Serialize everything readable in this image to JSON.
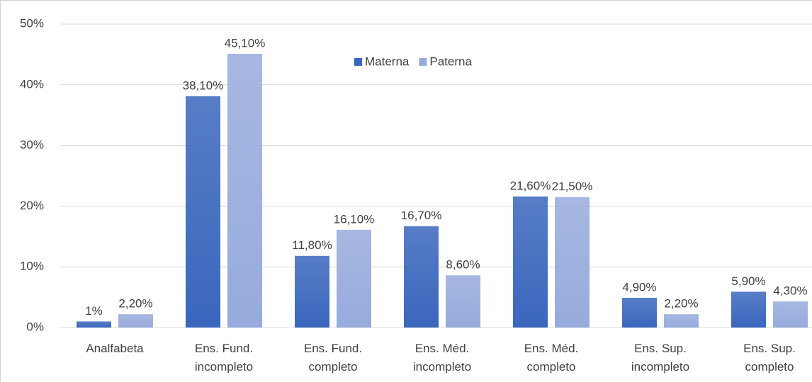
{
  "chart_data": {
    "type": "bar",
    "categories": [
      "Analfabeta",
      "Ens. Fund. incompleto",
      "Ens. Fund. completo",
      "Ens. Méd. incompleto",
      "Ens. Méd. completo",
      "Ens. Sup. incompleto",
      "Ens. Sup. completo"
    ],
    "series": [
      {
        "name": "Materna",
        "color": "#3a66bd",
        "values": [
          1,
          38.1,
          11.8,
          16.7,
          21.6,
          4.9,
          5.9
        ],
        "value_labels": [
          "1%",
          "38,10%",
          "11,80%",
          "16,70%",
          "21,60%",
          "4,90%",
          "5,90%"
        ]
      },
      {
        "name": "Paterna",
        "color": "#97abdc",
        "values": [
          2.2,
          45.1,
          16.1,
          8.6,
          21.5,
          2.2,
          4.3
        ],
        "value_labels": [
          "2,20%",
          "45,10%",
          "16,10%",
          "8,60%",
          "21,50%",
          "2,20%",
          "4,30%"
        ]
      }
    ],
    "ylim": [
      0,
      50
    ],
    "yticks": [
      {
        "value": 0,
        "label": "0%"
      },
      {
        "value": 10,
        "label": "10%"
      },
      {
        "value": 20,
        "label": "20%"
      },
      {
        "value": 30,
        "label": "30%"
      },
      {
        "value": 40,
        "label": "40%"
      },
      {
        "value": 50,
        "label": "50%"
      }
    ],
    "grid": true,
    "legend": "top"
  }
}
